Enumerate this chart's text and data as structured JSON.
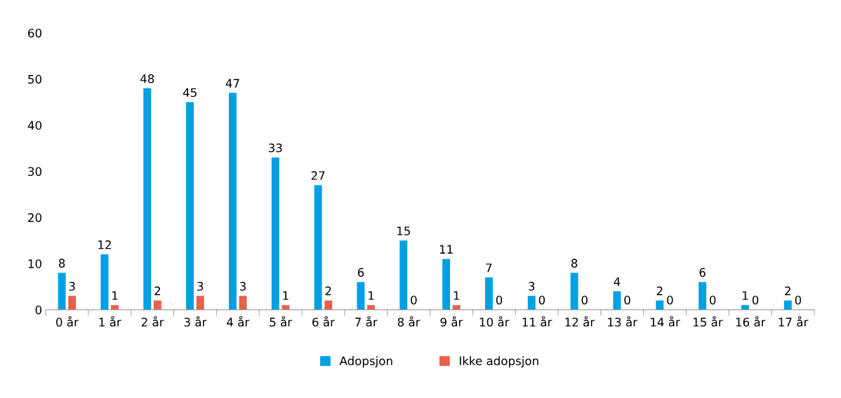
{
  "chart_data": {
    "type": "bar",
    "categories": [
      "0 år",
      "1 år",
      "2 år",
      "3 år",
      "4 år",
      "5 år",
      "6 år",
      "7 år",
      "8 år",
      "9 år",
      "10 år",
      "11 år",
      "12 år",
      "13 år",
      "14 år",
      "15 år",
      "16 år",
      "17 år"
    ],
    "series": [
      {
        "name": "Adopsjon",
        "color": "#00a0e3",
        "values": [
          8,
          12,
          48,
          45,
          47,
          33,
          27,
          6,
          15,
          11,
          7,
          3,
          8,
          4,
          2,
          6,
          1,
          2
        ]
      },
      {
        "name": "Ikke adopsjon",
        "color": "#e8604c",
        "values": [
          3,
          1,
          2,
          3,
          3,
          1,
          2,
          1,
          0,
          1,
          0,
          0,
          0,
          0,
          0,
          0,
          0,
          0
        ]
      }
    ],
    "ylim": [
      0,
      60
    ],
    "yticks": [
      0,
      10,
      20,
      30,
      40,
      50,
      60
    ],
    "grid": false,
    "legend": "bottom",
    "data_labels": true
  }
}
